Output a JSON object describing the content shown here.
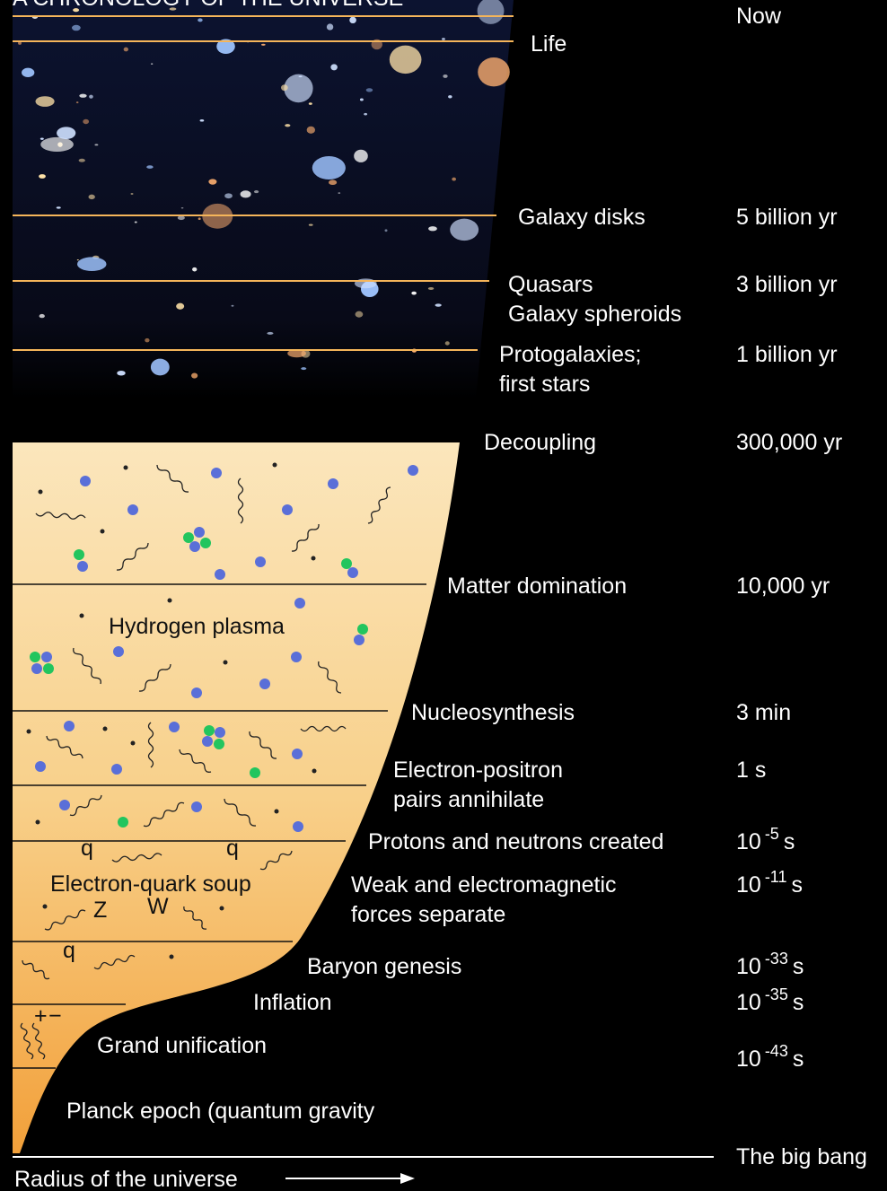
{
  "title": "A CHRONOLOGY OF THE UNIVERSE",
  "now": "Now",
  "big_bang": "The big bang",
  "axis_label": "Radius of the universe",
  "events": [
    {
      "label": [
        "Life"
      ]
    },
    {
      "label": [
        "Galaxy disks"
      ],
      "time": "5 billion yr"
    },
    {
      "label": [
        "Quasars",
        "Galaxy spheroids"
      ],
      "time": "3 billion yr"
    },
    {
      "label": [
        "Protogalaxies;",
        "first stars"
      ],
      "time": "1 billion yr"
    },
    {
      "label": [
        "Decoupling"
      ],
      "time": "300,000 yr"
    },
    {
      "label": [
        "Matter domination"
      ],
      "time": "10,000 yr"
    },
    {
      "label": [
        "Nucleosynthesis"
      ],
      "time": "3 min"
    },
    {
      "label": [
        "Electron-positron",
        "pairs annihilate"
      ],
      "time": "1 s"
    },
    {
      "label": [
        "Protons and neutrons created"
      ],
      "time": {
        "base": "10",
        "exponent": "-5",
        "unit": "s"
      }
    },
    {
      "label": [
        "Weak and electromagnetic",
        "forces separate"
      ],
      "time": {
        "base": "10",
        "exponent": "-11",
        "unit": "s"
      }
    },
    {
      "label": [
        "Baryon genesis"
      ],
      "time": {
        "base": "10",
        "exponent": "-33",
        "unit": "s"
      }
    },
    {
      "label": [
        "Inflation"
      ],
      "time": {
        "base": "10",
        "exponent": "-35",
        "unit": "s"
      }
    },
    {
      "label": [
        "Grand unification"
      ],
      "time": {
        "base": "10",
        "exponent": "-43",
        "unit": "s"
      }
    }
  ],
  "regions": [
    "Hydrogen plasma",
    "Electron-quark soup",
    "Grand unification",
    "Planck epoch (quantum gravity"
  ],
  "particles": [
    "q",
    "q",
    "Z",
    "W",
    "q",
    "+",
    "−"
  ]
}
